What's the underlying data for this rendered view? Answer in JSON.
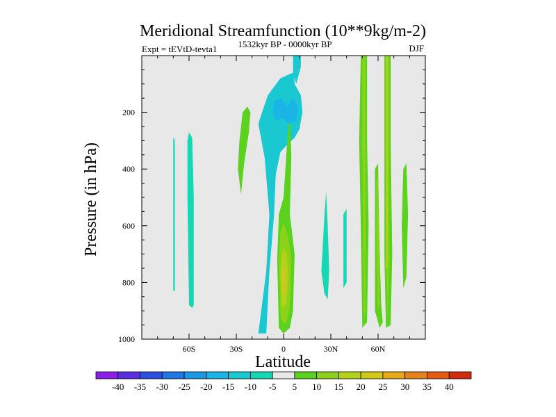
{
  "chart_data": {
    "type": "contour",
    "title": "Meridional Streamfunction (10**9kg/m-2)",
    "subtitle_left": "Expt = tEVtD-tevta1",
    "subtitle_center": "1532kyr BP - 0000kyr BP",
    "subtitle_right": "DJF",
    "xlabel": "Latitude",
    "ylabel": "Pressure (in hPa)",
    "xlim": [
      -90,
      90
    ],
    "ylim": [
      0,
      1000
    ],
    "y_inverted": true,
    "x_ticks": [
      {
        "value": -60,
        "label": "60S"
      },
      {
        "value": -30,
        "label": "30S"
      },
      {
        "value": 0,
        "label": "0"
      },
      {
        "value": 30,
        "label": "30N"
      },
      {
        "value": 60,
        "label": "60N"
      }
    ],
    "y_ticks": [
      {
        "value": 200,
        "label": "200"
      },
      {
        "value": 400,
        "label": "400"
      },
      {
        "value": 600,
        "label": "600"
      },
      {
        "value": 800,
        "label": "800"
      },
      {
        "value": 1000,
        "label": "1000"
      }
    ],
    "background_band": "-5 to 5",
    "colorbar": {
      "labels": [
        "-40",
        "-35",
        "-30",
        "-25",
        "-20",
        "-15",
        "-10",
        "-5",
        "5",
        "10",
        "15",
        "20",
        "25",
        "30",
        "35",
        "40"
      ],
      "colors": [
        "#8c1fe6",
        "#5a2ee0",
        "#2d4fe0",
        "#1f78e6",
        "#1a9ae6",
        "#1ab4e6",
        "#1ac8d2",
        "#14d8b4",
        "#e8e8e8",
        "#5ad21e",
        "#8cd21a",
        "#b4d21a",
        "#d2c81a",
        "#e6aa1a",
        "#e6821a",
        "#e65a14",
        "#d22d0a"
      ]
    },
    "regions": [
      {
        "name": "tropical-upper-negative",
        "level": -10,
        "polygon": [
          [
            -16,
            980
          ],
          [
            -11,
            760
          ],
          [
            -9,
            560
          ],
          [
            -12,
            360
          ],
          [
            -16,
            240
          ],
          [
            -10,
            140
          ],
          [
            -2,
            80
          ],
          [
            6,
            60
          ],
          [
            10,
            60
          ],
          [
            11,
            30
          ],
          [
            10,
            0
          ],
          [
            6,
            0
          ],
          [
            7,
            100
          ],
          [
            11,
            140
          ],
          [
            12,
            200
          ],
          [
            10,
            260
          ],
          [
            7,
            290
          ],
          [
            3,
            310
          ],
          [
            -2,
            340
          ],
          [
            -5,
            420
          ],
          [
            -6,
            560
          ],
          [
            -9,
            760
          ],
          [
            -11,
            980
          ]
        ]
      },
      {
        "name": "tropical-upper-core",
        "level": -15,
        "polygon": [
          [
            -6,
            160
          ],
          [
            -1,
            150
          ],
          [
            2,
            180
          ],
          [
            6,
            150
          ],
          [
            9,
            180
          ],
          [
            8,
            230
          ],
          [
            3,
            240
          ],
          [
            -1,
            220
          ],
          [
            -5,
            230
          ],
          [
            -7,
            200
          ]
        ]
      },
      {
        "name": "nh-upper-negative",
        "level": -10,
        "polygon": [
          [
            6,
            0
          ],
          [
            11,
            0
          ],
          [
            11,
            40
          ],
          [
            8,
            100
          ],
          [
            6,
            60
          ]
        ]
      },
      {
        "name": "sh-upper-positive",
        "level": 5,
        "polygon": [
          [
            -26,
            200
          ],
          [
            -23,
            180
          ],
          [
            -21,
            200
          ],
          [
            -22,
            270
          ],
          [
            -25,
            380
          ],
          [
            -27,
            490
          ],
          [
            -29,
            400
          ],
          [
            -28,
            300
          ]
        ]
      },
      {
        "name": "equatorial-lower-positive",
        "level": 5,
        "polygon": [
          [
            -3,
            960
          ],
          [
            -4,
            720
          ],
          [
            -3,
            560
          ],
          [
            0,
            500
          ],
          [
            2,
            330
          ],
          [
            3,
            240
          ],
          [
            4,
            240
          ],
          [
            5,
            350
          ],
          [
            4,
            560
          ],
          [
            7,
            700
          ],
          [
            6,
            900
          ],
          [
            4,
            960
          ],
          [
            0,
            980
          ]
        ]
      },
      {
        "name": "equatorial-lower-10",
        "level": 10,
        "polygon": [
          [
            -2,
            920
          ],
          [
            -3,
            720
          ],
          [
            -2,
            620
          ],
          [
            0,
            590
          ],
          [
            3,
            640
          ],
          [
            5,
            720
          ],
          [
            4,
            880
          ],
          [
            2,
            940
          ],
          [
            0,
            945
          ]
        ]
      },
      {
        "name": "equatorial-lower-15",
        "level": 15,
        "polygon": [
          [
            -1,
            880
          ],
          [
            -2,
            770
          ],
          [
            -1,
            700
          ],
          [
            0,
            680
          ],
          [
            2,
            700
          ],
          [
            3,
            770
          ],
          [
            2,
            870
          ],
          [
            0,
            890
          ]
        ]
      },
      {
        "name": "equatorial-lower-20",
        "level": 20,
        "polygon": [
          [
            -1,
            840
          ],
          [
            -1,
            770
          ],
          [
            0,
            740
          ],
          [
            1,
            770
          ],
          [
            1,
            830
          ],
          [
            0,
            850
          ]
        ]
      },
      {
        "name": "sh-mid-negative-1",
        "level": -5,
        "polygon": [
          [
            -70,
            290
          ],
          [
            -69,
            300
          ],
          [
            -69,
            560
          ],
          [
            -69,
            830
          ],
          [
            -70,
            830
          ],
          [
            -70,
            560
          ]
        ]
      },
      {
        "name": "sh-mid-negative-2",
        "level": -5,
        "polygon": [
          [
            -60,
            270
          ],
          [
            -58,
            290
          ],
          [
            -57,
            500
          ],
          [
            -57,
            880
          ],
          [
            -58,
            890
          ],
          [
            -60,
            880
          ],
          [
            -61,
            500
          ],
          [
            -61,
            300
          ]
        ]
      },
      {
        "name": "nh-mid-negative-1",
        "level": -5,
        "polygon": [
          [
            26,
            560
          ],
          [
            27,
            480
          ],
          [
            28,
            600
          ],
          [
            29,
            760
          ],
          [
            28,
            860
          ],
          [
            26,
            840
          ],
          [
            24,
            760
          ]
        ]
      },
      {
        "name": "nh-mid-negative-2",
        "level": -5,
        "polygon": [
          [
            38,
            560
          ],
          [
            40,
            540
          ],
          [
            40,
            800
          ],
          [
            38,
            820
          ]
        ]
      },
      {
        "name": "nh-ferrel-positive-1",
        "level": 5,
        "polygon": [
          [
            49,
            0
          ],
          [
            53,
            0
          ],
          [
            53,
            300
          ],
          [
            54,
            600
          ],
          [
            53,
            940
          ],
          [
            50,
            960
          ],
          [
            49,
            600
          ],
          [
            48,
            300
          ]
        ]
      },
      {
        "name": "nh-ferrel-10-1",
        "level": 10,
        "polygon": [
          [
            50,
            0
          ],
          [
            52,
            0
          ],
          [
            52,
            300
          ],
          [
            52,
            900
          ],
          [
            51,
            920
          ],
          [
            50,
            300
          ]
        ]
      },
      {
        "name": "nh-ferrel-positive-2",
        "level": 5,
        "polygon": [
          [
            58,
            400
          ],
          [
            60,
            380
          ],
          [
            61,
            700
          ],
          [
            62,
            880
          ],
          [
            63,
            940
          ],
          [
            61,
            960
          ],
          [
            58,
            900
          ]
        ]
      },
      {
        "name": "nh-ferrel-10-2",
        "level": 10,
        "polygon": [
          [
            59,
            440
          ],
          [
            60,
            420
          ],
          [
            61,
            880
          ],
          [
            60,
            900
          ],
          [
            59,
            700
          ]
        ]
      },
      {
        "name": "nh-ferrel-positive-3",
        "level": 5,
        "polygon": [
          [
            64,
            0
          ],
          [
            68,
            0
          ],
          [
            68,
            300
          ],
          [
            69,
            700
          ],
          [
            68,
            950
          ],
          [
            65,
            960
          ],
          [
            64,
            700
          ]
        ]
      },
      {
        "name": "nh-ferrel-10-3",
        "level": 10,
        "polygon": [
          [
            65,
            0
          ],
          [
            67,
            0
          ],
          [
            67,
            700
          ],
          [
            66,
            930
          ],
          [
            65,
            700
          ]
        ]
      },
      {
        "name": "nh-ferrel-15-3",
        "level": 15,
        "polygon": [
          [
            65,
            0
          ],
          [
            66,
            0
          ],
          [
            66,
            750
          ],
          [
            65,
            750
          ]
        ]
      },
      {
        "name": "nh-high-positive",
        "level": 5,
        "polygon": [
          [
            76,
            400
          ],
          [
            78,
            380
          ],
          [
            79,
            560
          ],
          [
            78,
            780
          ],
          [
            76,
            820
          ],
          [
            75,
            600
          ]
        ]
      }
    ]
  }
}
